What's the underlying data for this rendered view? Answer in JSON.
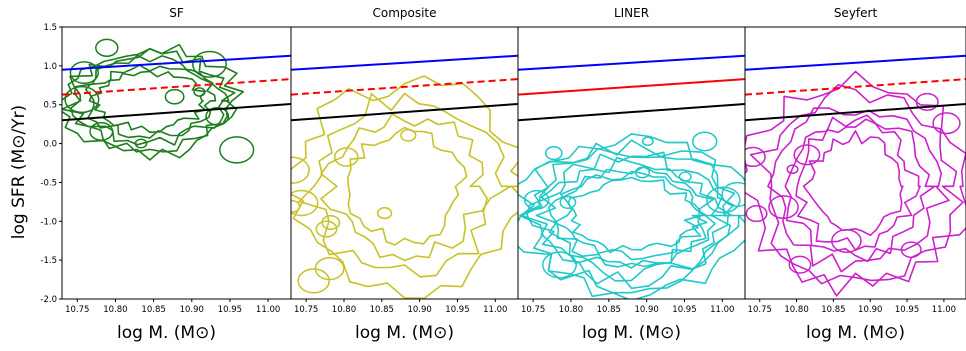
{
  "figure": {
    "ylabel": "log SFR (M⊙/Yr)",
    "xlabel": "log M. (M⊙)"
  },
  "chart_data": [
    {
      "type": "contour",
      "title": "SF",
      "xlim": [
        10.73,
        11.03
      ],
      "ylim": [
        -2.0,
        1.5
      ],
      "xticks": [
        "10.75",
        "10.80",
        "10.85",
        "10.90",
        "10.95",
        "11.00"
      ],
      "yticks": [
        "1.5",
        "1.0",
        "0.5",
        "0.0",
        "-0.5",
        "-1.0",
        "-1.5",
        "-2.0"
      ],
      "contour_color": "#1e7d1e",
      "density_extent": {
        "x": [
          10.73,
          10.96
        ],
        "y": [
          -0.15,
          1.25
        ]
      },
      "lines": [
        {
          "color": "#0000ff",
          "style": "solid",
          "y_start": 0.95,
          "y_end": 1.13
        },
        {
          "color": "#ff0000",
          "style": "dashed",
          "y_start": 0.63,
          "y_end": 0.83
        },
        {
          "color": "#000000",
          "style": "solid",
          "y_start": 0.3,
          "y_end": 0.51
        }
      ]
    },
    {
      "type": "contour",
      "title": "Composite",
      "xlim": [
        10.73,
        11.03
      ],
      "ylim": [
        -2.0,
        1.5
      ],
      "xticks": [
        "10.75",
        "10.80",
        "10.85",
        "10.90",
        "10.95",
        "11.00"
      ],
      "contour_color": "#c8c228",
      "density_extent": {
        "x": [
          10.73,
          11.03
        ],
        "y": [
          -1.85,
          0.75
        ]
      },
      "lines": [
        {
          "color": "#0000ff",
          "style": "solid",
          "y_start": 0.95,
          "y_end": 1.13
        },
        {
          "color": "#ff0000",
          "style": "dashed",
          "y_start": 0.63,
          "y_end": 0.83
        },
        {
          "color": "#000000",
          "style": "solid",
          "y_start": 0.3,
          "y_end": 0.51
        }
      ]
    },
    {
      "type": "contour",
      "title": "LINER",
      "xlim": [
        10.73,
        11.03
      ],
      "ylim": [
        -2.0,
        1.5
      ],
      "xticks": [
        "10.75",
        "10.80",
        "10.85",
        "10.90",
        "10.95",
        "11.00"
      ],
      "contour_color": "#22c8c8",
      "density_extent": {
        "x": [
          10.73,
          11.03
        ],
        "y": [
          -1.9,
          0.05
        ]
      },
      "lines": [
        {
          "color": "#0000ff",
          "style": "solid",
          "y_start": 0.95,
          "y_end": 1.13
        },
        {
          "color": "#ff0000",
          "style": "solid",
          "y_start": 0.63,
          "y_end": 0.83
        },
        {
          "color": "#000000",
          "style": "solid",
          "y_start": 0.3,
          "y_end": 0.51
        }
      ]
    },
    {
      "type": "contour",
      "title": "Seyfert",
      "xlim": [
        10.73,
        11.03
      ],
      "ylim": [
        -2.0,
        1.5
      ],
      "xticks": [
        "10.75",
        "10.80",
        "10.85",
        "10.90",
        "10.95",
        "11.00"
      ],
      "contour_color": "#cc22cc",
      "density_extent": {
        "x": [
          10.73,
          11.03
        ],
        "y": [
          -1.85,
          0.75
        ]
      },
      "lines": [
        {
          "color": "#0000ff",
          "style": "solid",
          "y_start": 0.95,
          "y_end": 1.13
        },
        {
          "color": "#ff0000",
          "style": "dashed",
          "y_start": 0.63,
          "y_end": 0.83
        },
        {
          "color": "#000000",
          "style": "solid",
          "y_start": 0.3,
          "y_end": 0.51
        }
      ]
    }
  ]
}
